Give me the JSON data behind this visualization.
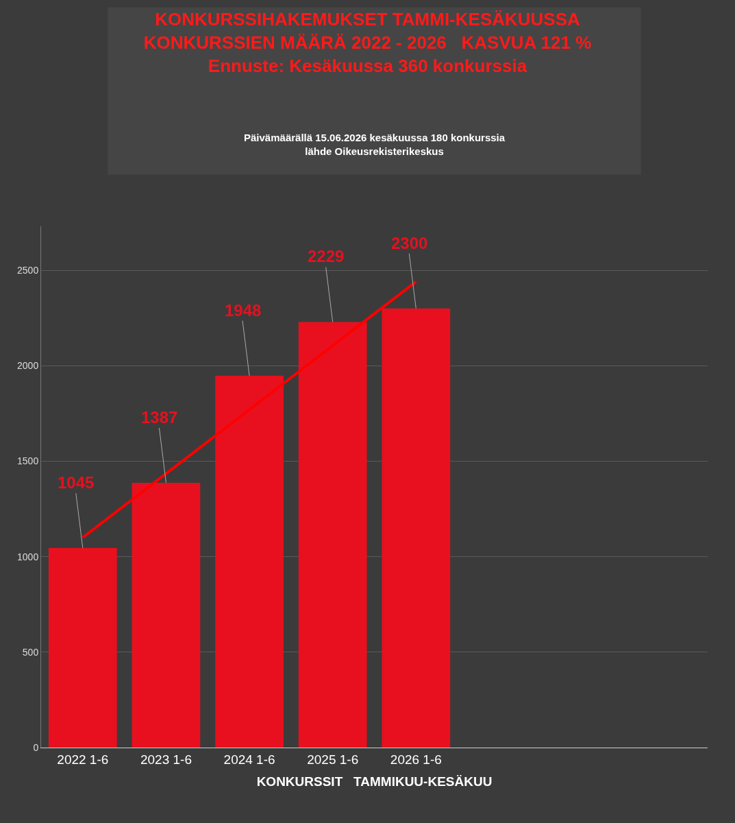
{
  "chart_data": {
    "type": "bar",
    "title": "KONKURSSIHAKEMUKSET TAMMI-KESÄKUUSSA\nKONKURSSIEN MÄÄRÄ 2022 - 2026   KASVUA 121 %\nEnnuste: Kesäkuussa 360 konkurssia",
    "subtitle": "Päivämäärällä 15.06.2026 kesäkuussa 180 konkurssia\nlähde Oikeusrekisterikeskus",
    "xlabel": "KONKURSSIT   TAMMIKUU-KESÄKUU",
    "categories": [
      "2022 1-6",
      "2023 1-6",
      "2024 1-6",
      "2025 1-6",
      "2026 1-6",
      null,
      null,
      null
    ],
    "series": [
      {
        "color": "#e8101f",
        "values": [
          1045,
          1387,
          1948,
          2229,
          2300,
          null,
          null,
          null
        ],
        "value_labels": [
          "1045",
          "1387",
          "1948",
          "2229",
          "2300",
          null,
          null,
          null
        ]
      },
      {
        "type": "line",
        "color": "#ff0000",
        "values": [
          1100,
          1435,
          1770,
          2105,
          2440,
          null,
          null,
          null
        ]
      }
    ],
    "ylim": [
      0,
      2730
    ],
    "yticks": [
      0,
      500,
      1000,
      1500,
      2000,
      2500
    ],
    "grid": "y",
    "legend": false
  }
}
